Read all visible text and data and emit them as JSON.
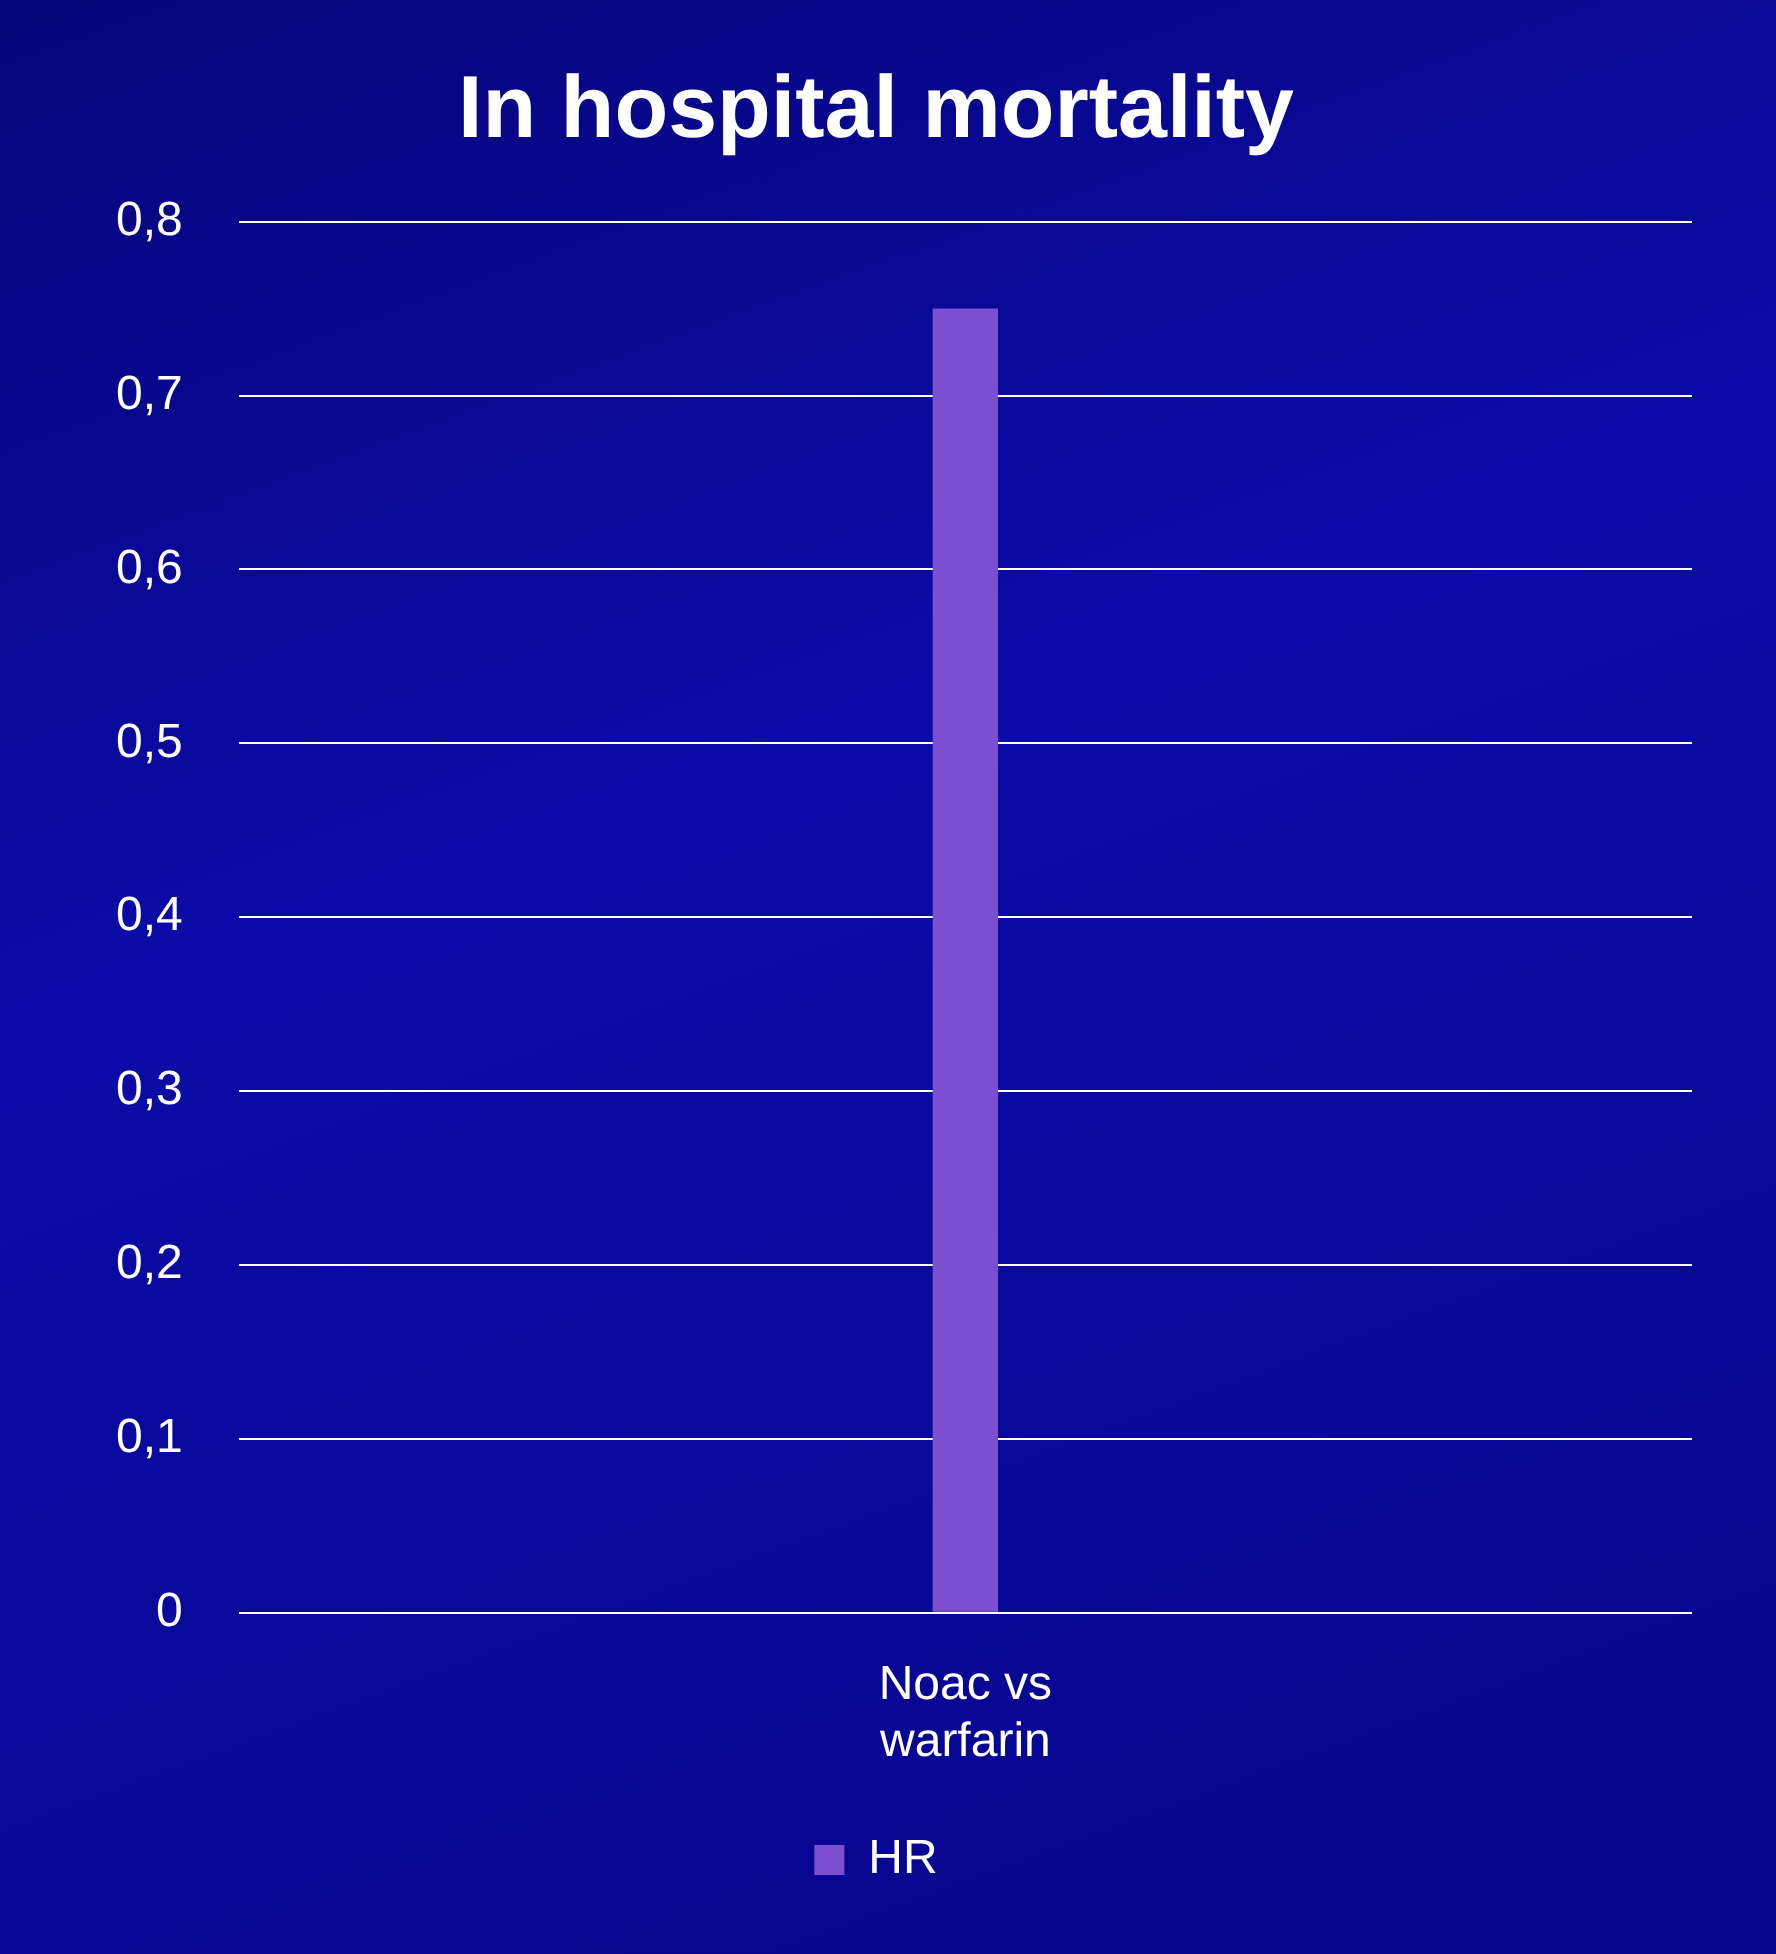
{
  "chart_data": {
    "type": "bar",
    "title": "In hospital mortality",
    "categories": [
      "Noac vs warfarin"
    ],
    "series": [
      {
        "name": "HR",
        "color": "#7b4fd0",
        "values": [
          0.75
        ]
      }
    ],
    "ylim": [
      0,
      0.8
    ],
    "yticks": [
      {
        "value": 0,
        "label": "0"
      },
      {
        "value": 0.1,
        "label": "0,1"
      },
      {
        "value": 0.2,
        "label": "0,2"
      },
      {
        "value": 0.3,
        "label": "0,3"
      },
      {
        "value": 0.4,
        "label": "0,4"
      },
      {
        "value": 0.5,
        "label": "0,5"
      },
      {
        "value": 0.6,
        "label": "0,6"
      },
      {
        "value": 0.7,
        "label": "0,7"
      },
      {
        "value": 0.8,
        "label": "0,8"
      }
    ],
    "grid": "y",
    "legend": "bottom"
  }
}
